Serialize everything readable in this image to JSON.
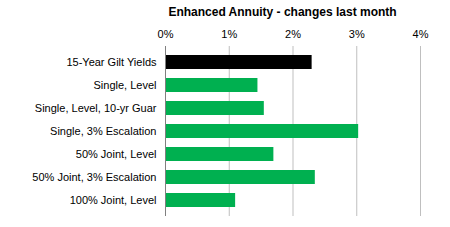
{
  "chart_data": {
    "type": "bar",
    "title": "Enhanced Annuity - changes last month",
    "orientation": "horizontal",
    "categories": [
      "15-Year Gilt Yields",
      "Single, Level",
      "Single, Level, 10-yr Guar",
      "Single, 3% Escalation",
      "50% Joint, Level",
      "50% Joint, 3% Escalation",
      "100% Joint, Level"
    ],
    "values": [
      2.3,
      1.45,
      1.55,
      3.03,
      1.7,
      2.35,
      1.1
    ],
    "colors": [
      "#000000",
      "#00b050",
      "#00b050",
      "#00b050",
      "#00b050",
      "#00b050",
      "#00b050"
    ],
    "xlim": [
      0,
      4
    ],
    "xticks": [
      {
        "value": 0,
        "label": "0%"
      },
      {
        "value": 1,
        "label": "1%"
      },
      {
        "value": 2,
        "label": "2%"
      },
      {
        "value": 3,
        "label": "3%"
      },
      {
        "value": 4,
        "label": "4%"
      }
    ],
    "grid": true
  }
}
